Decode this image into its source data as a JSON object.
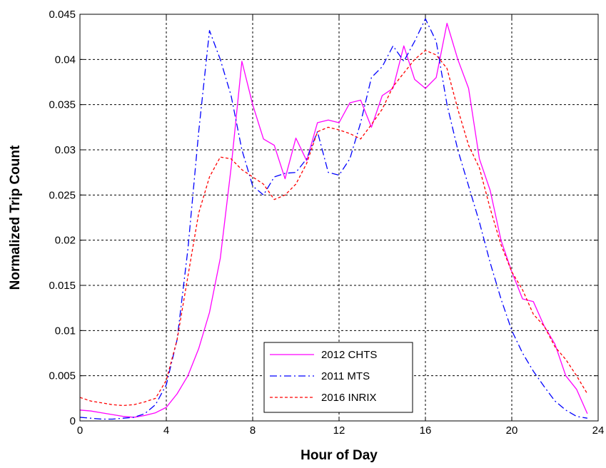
{
  "chart_data": {
    "type": "line",
    "xlabel": "Hour of Day",
    "ylabel": "Normalized Trip Count",
    "xlim": [
      0,
      24
    ],
    "ylim": [
      0,
      0.045
    ],
    "xticks": [
      "0",
      "4",
      "8",
      "12",
      "16",
      "20",
      "24"
    ],
    "yticks": [
      "0",
      "0.005",
      "0.01",
      "0.015",
      "0.02",
      "0.025",
      "0.03",
      "0.035",
      "0.04",
      "0.045"
    ],
    "grid": true,
    "legend_position": "bottom-center",
    "series": [
      {
        "name": "2012 CHTS",
        "color": "#ff00ff",
        "style": "solid",
        "x": [
          0,
          0.5,
          1,
          1.5,
          2,
          2.5,
          3,
          3.5,
          4,
          4.5,
          5,
          5.5,
          6,
          6.5,
          7,
          7.5,
          8,
          8.5,
          9,
          9.5,
          10,
          10.5,
          11,
          11.5,
          12,
          12.5,
          13,
          13.5,
          14,
          14.5,
          15,
          15.5,
          16,
          16.5,
          17,
          17.5,
          18,
          18.5,
          19,
          19.5,
          20,
          20.5,
          21,
          21.5,
          22,
          22.5,
          23,
          23.5
        ],
        "y": [
          0.0012,
          0.0011,
          0.0009,
          0.0007,
          0.0005,
          0.0004,
          0.0006,
          0.0009,
          0.0015,
          0.003,
          0.005,
          0.008,
          0.012,
          0.018,
          0.028,
          0.0398,
          0.035,
          0.0312,
          0.0305,
          0.0268,
          0.0313,
          0.0288,
          0.033,
          0.0333,
          0.033,
          0.0352,
          0.0355,
          0.0325,
          0.036,
          0.0368,
          0.0415,
          0.0378,
          0.0368,
          0.038,
          0.044,
          0.04,
          0.0368,
          0.029,
          0.0255,
          0.02,
          0.0165,
          0.0135,
          0.0132,
          0.0105,
          0.0085,
          0.005,
          0.0035,
          0.0008
        ]
      },
      {
        "name": "2011 MTS",
        "color": "#0000ff",
        "style": "dash-dot",
        "x": [
          0,
          0.5,
          1,
          1.5,
          2,
          2.5,
          3,
          3.5,
          4,
          4.5,
          5,
          5.5,
          6,
          6.5,
          7,
          7.5,
          8,
          8.5,
          9,
          9.5,
          10,
          10.5,
          11,
          11.5,
          12,
          12.5,
          13,
          13.5,
          14,
          14.5,
          15,
          15.5,
          16,
          16.5,
          17,
          17.5,
          18,
          18.5,
          19,
          19.5,
          20,
          20.5,
          21,
          21.5,
          22,
          22.5,
          23,
          23.5
        ],
        "y": [
          0.0004,
          0.0003,
          0.0002,
          0.0002,
          0.0003,
          0.0004,
          0.0008,
          0.0018,
          0.004,
          0.009,
          0.019,
          0.032,
          0.0432,
          0.04,
          0.036,
          0.03,
          0.026,
          0.025,
          0.027,
          0.0274,
          0.0275,
          0.029,
          0.032,
          0.0275,
          0.0272,
          0.029,
          0.033,
          0.038,
          0.0392,
          0.0415,
          0.0398,
          0.042,
          0.0445,
          0.042,
          0.035,
          0.03,
          0.026,
          0.022,
          0.0175,
          0.0135,
          0.01,
          0.0075,
          0.0055,
          0.0038,
          0.0022,
          0.0012,
          0.0005,
          0.0003
        ]
      },
      {
        "name": "2016 INRIX",
        "color": "#ff0000",
        "style": "dotted",
        "x": [
          0,
          0.5,
          1,
          1.5,
          2,
          2.5,
          3,
          3.5,
          4,
          4.5,
          5,
          5.5,
          6,
          6.5,
          7,
          7.5,
          8,
          8.5,
          9,
          9.5,
          10,
          10.5,
          11,
          11.5,
          12,
          12.5,
          13,
          13.5,
          14,
          14.5,
          15,
          15.5,
          16,
          16.5,
          17,
          17.5,
          18,
          18.5,
          19,
          19.5,
          20,
          20.5,
          21,
          21.5,
          22,
          22.5,
          23,
          23.5
        ],
        "y": [
          0.0026,
          0.0022,
          0.002,
          0.0018,
          0.0017,
          0.0018,
          0.0021,
          0.0025,
          0.0045,
          0.009,
          0.016,
          0.023,
          0.027,
          0.0292,
          0.029,
          0.0278,
          0.027,
          0.0262,
          0.0245,
          0.025,
          0.0262,
          0.0285,
          0.032,
          0.0325,
          0.0322,
          0.0318,
          0.0312,
          0.0328,
          0.0345,
          0.037,
          0.0385,
          0.04,
          0.041,
          0.0405,
          0.039,
          0.0345,
          0.0305,
          0.028,
          0.0235,
          0.0195,
          0.0165,
          0.0145,
          0.0118,
          0.0105,
          0.0082,
          0.0068,
          0.005,
          0.003
        ]
      }
    ]
  }
}
